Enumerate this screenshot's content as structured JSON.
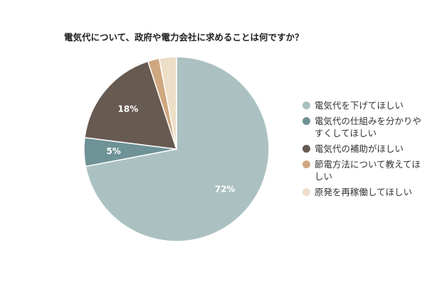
{
  "chart_data": {
    "type": "pie",
    "title": "電気代について、政府や電力会社に求めることは何ですか？",
    "categories": [
      "電気代を下げてほしい",
      "電気代の仕組みを分かりやすくしてほしい",
      "電気代の補助がほしい",
      "節電方法について教えてほしい",
      "原発を再稼働してほしい"
    ],
    "values": [
      72,
      5,
      18,
      2,
      3
    ],
    "data_labels": [
      "72%",
      "5%",
      "18%",
      "",
      ""
    ],
    "colors": [
      "#abc1c1",
      "#6e9296",
      "#675a51",
      "#cea77f",
      "#eddec8"
    ],
    "legend_position": "right",
    "start_angle_deg": 0,
    "direction": "clockwise"
  }
}
